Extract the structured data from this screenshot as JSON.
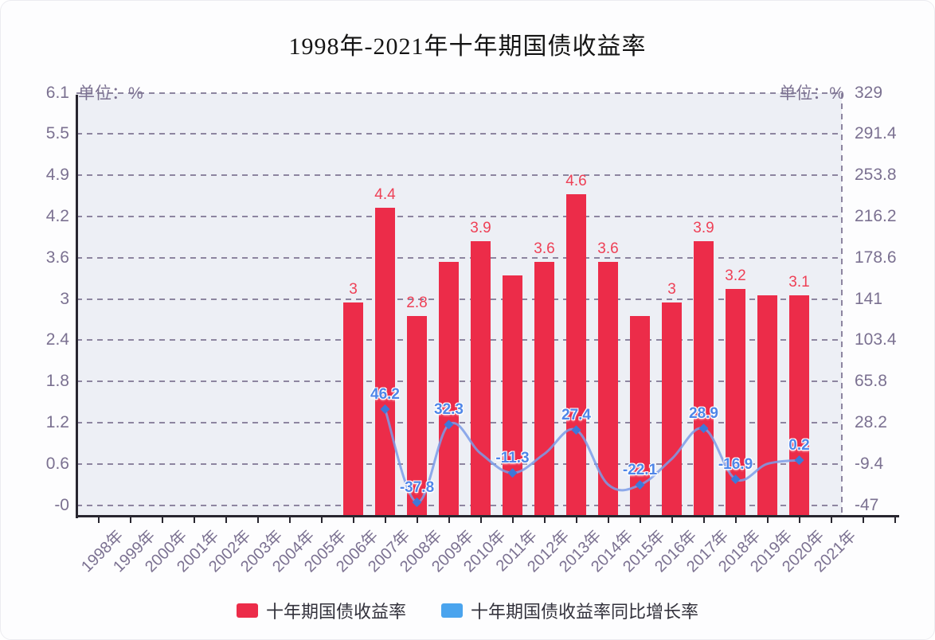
{
  "title": "1998年-2021年十年期国债收益率",
  "axes": {
    "left": {
      "unit": "单位：%",
      "ticks": [
        "6.1",
        "5.5",
        "4.9",
        "4.2",
        "3.6",
        "3",
        "2.4",
        "1.8",
        "1.2",
        "0.6",
        "-0"
      ]
    },
    "right": {
      "unit": "单位：%",
      "ticks": [
        "329",
        "291.4",
        "253.8",
        "216.2",
        "178.6",
        "141",
        "103.4",
        "65.8",
        "28.2",
        "-9.4",
        "-47"
      ]
    }
  },
  "legend": {
    "bars_label": "十年期国债收益率",
    "line_label": "十年期国债收益率同比增长率"
  },
  "colors": {
    "bar": "#ec2c49",
    "bar_label": "#ee4056",
    "line": "#7b9ce8",
    "line_marker": "#3e78d8",
    "line_label": "#4f86e8",
    "legend_line_swatch": "#4aa4ee",
    "axis_text": "#7b7191",
    "grid": "#8d85a0",
    "axis_line": "#28262f",
    "plot_bg": "#edeff5",
    "title_text": "#141414"
  },
  "chart_data": {
    "type": "bar+line",
    "title": "1998年-2021年十年期国债收益率",
    "categories": [
      "1998年",
      "1999年",
      "2000年",
      "2001年",
      "2002年",
      "2003年",
      "2004年",
      "2005年",
      "2006年",
      "2007年",
      "2008年",
      "2009年",
      "2010年",
      "2011年",
      "2012年",
      "2013年",
      "2014年",
      "2015年",
      "2016年",
      "2017年",
      "2018年",
      "2019年",
      "2020年",
      "2021年"
    ],
    "series": [
      {
        "name": "十年期国债收益率",
        "type": "bar",
        "axis": "left",
        "unit": "%",
        "values": [
          null,
          null,
          null,
          null,
          null,
          null,
          null,
          null,
          3,
          4.4,
          2.8,
          3.6,
          3.9,
          3.4,
          3.6,
          4.6,
          3.6,
          2.8,
          3,
          3.9,
          3.2,
          3.1,
          3.1,
          null
        ],
        "shown_labels": [
          null,
          null,
          null,
          null,
          null,
          null,
          null,
          null,
          "3",
          "4.4",
          "2.8",
          null,
          "3.9",
          null,
          "3.6",
          "4.6",
          "3.6",
          null,
          "3",
          "3.9",
          "3.2",
          null,
          "3.1",
          null
        ]
      },
      {
        "name": "十年期国债收益率同比增长率",
        "type": "line",
        "axis": "right",
        "unit": "%",
        "values": [
          null,
          null,
          null,
          null,
          null,
          null,
          null,
          null,
          null,
          46.2,
          -37.8,
          32.3,
          6.3,
          -11.3,
          5.9,
          27.4,
          -21.7,
          -22.1,
          1.4,
          28.9,
          -16.9,
          -3.1,
          0.2,
          null
        ],
        "shown_labels": [
          null,
          null,
          null,
          null,
          null,
          null,
          null,
          null,
          null,
          "46.2",
          "-37.8",
          "32.3",
          null,
          "-11.3",
          null,
          "27.4",
          null,
          "-22.1",
          null,
          "28.9",
          "-16.9",
          null,
          "0.2",
          null
        ]
      }
    ],
    "left_axis_range": [
      0,
      6.1
    ],
    "right_axis_range": [
      -47,
      329
    ],
    "grid": "horizontal dashed",
    "legend_position": "bottom"
  }
}
